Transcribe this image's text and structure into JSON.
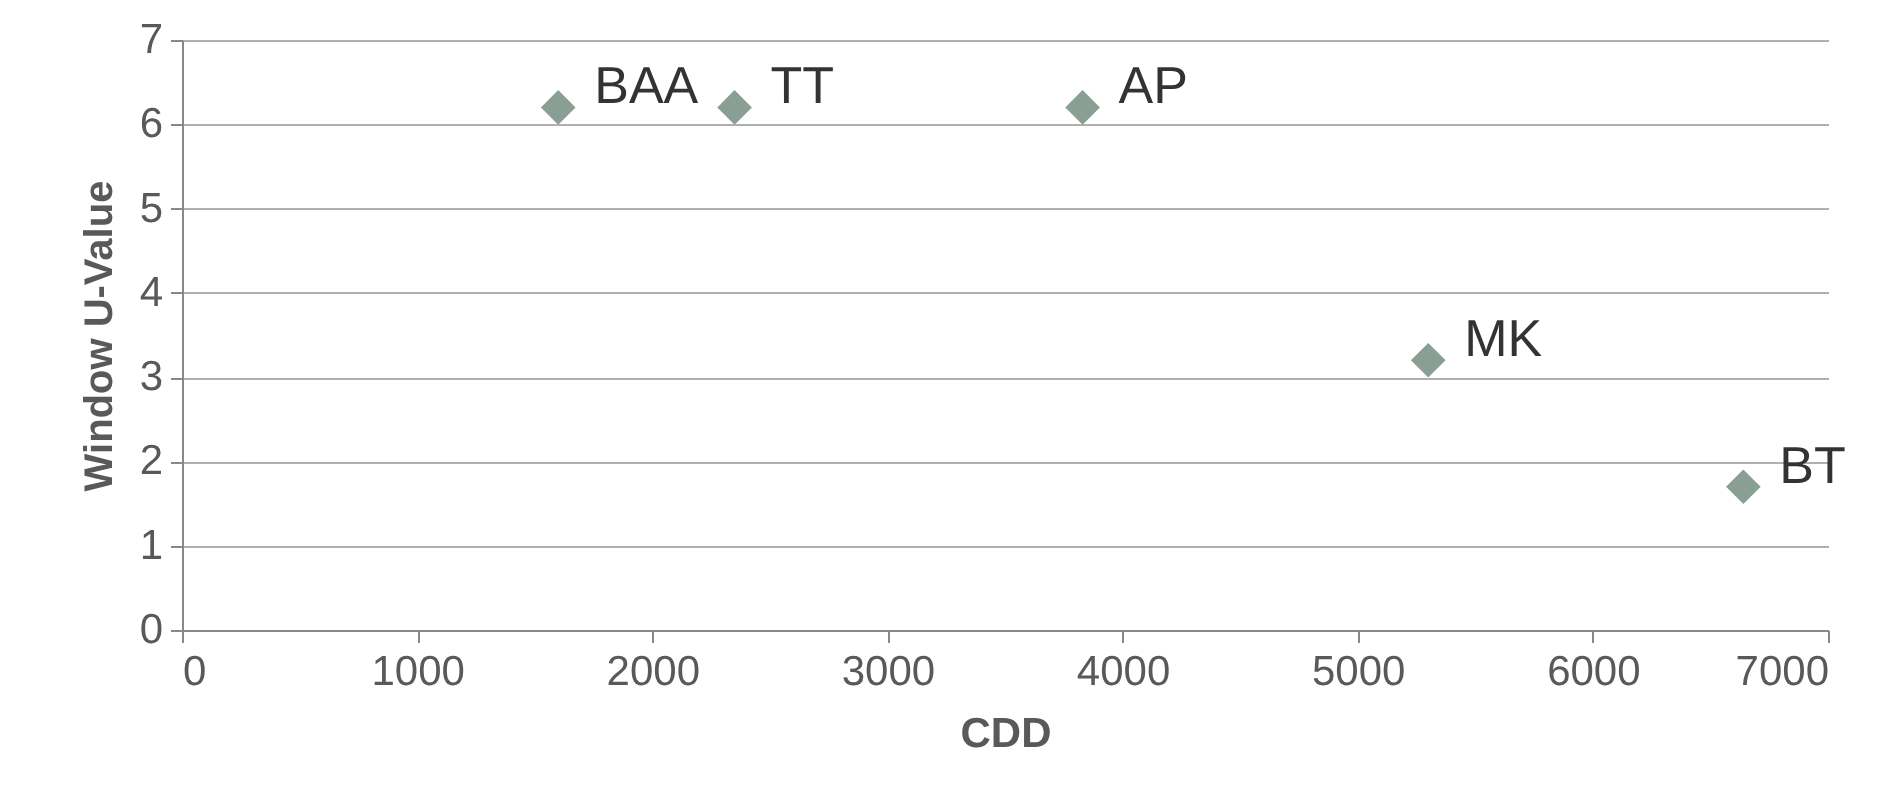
{
  "chart_data": {
    "type": "scatter",
    "xlabel": "CDD",
    "ylabel": "Window U-Value",
    "x": [
      1600,
      2350,
      3830,
      5300,
      6640
    ],
    "series": [
      {
        "color": "#8a9f94",
        "values": [
          6.2,
          6.2,
          6.2,
          3.2,
          1.7
        ]
      }
    ],
    "xlim": [
      0,
      7000
    ],
    "xticks": [
      0,
      1000,
      2000,
      3000,
      4000,
      5000,
      6000,
      7000
    ],
    "ylim": [
      0,
      7
    ],
    "yticks": [
      0,
      1,
      2,
      3,
      4,
      5,
      6,
      7
    ],
    "grid": "y",
    "marker": "diamond",
    "annotations": [
      {
        "text": "BAA",
        "x": 1600,
        "y": 6.2
      },
      {
        "text": "TT",
        "x": 2350,
        "y": 6.2
      },
      {
        "text": "AP",
        "x": 3830,
        "y": 6.2
      },
      {
        "text": "MK",
        "x": 5300,
        "y": 3.2
      },
      {
        "text": "BT",
        "x": 6640,
        "y": 1.7
      }
    ]
  }
}
